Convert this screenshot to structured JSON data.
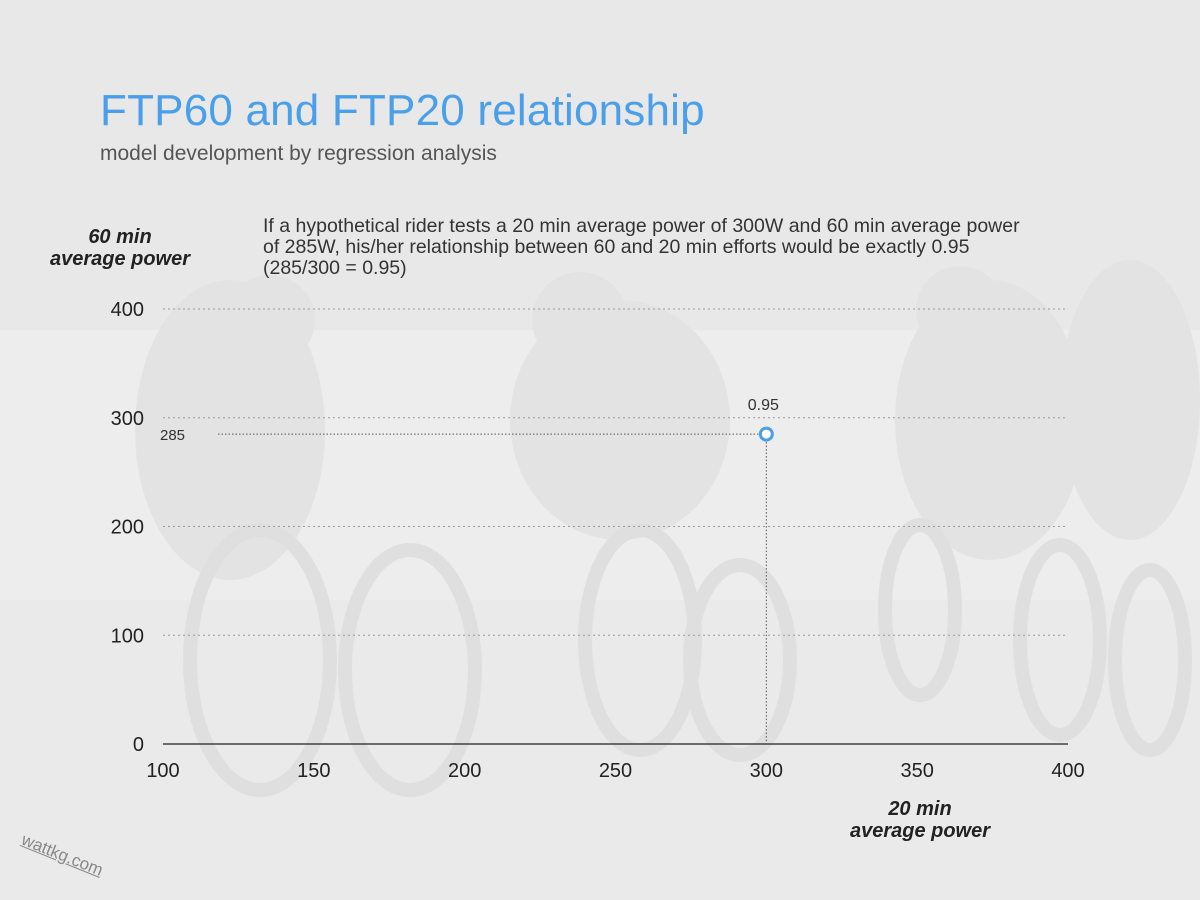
{
  "page": {
    "title": "FTP60 and FTP20 relationship",
    "subtitle": "model development by regression analysis",
    "note": "If a hypothetical rider tests a 20 min average power of 300W and 60 min average power of 285W, his/her relationship between 60 and 20 min efforts would be exactly 0.95 (285/300 = 0.95)",
    "watermark": "wattkg.com"
  },
  "chart_data": {
    "type": "scatter",
    "title": "FTP60 and FTP20 relationship",
    "xlabel": "20 min average power",
    "ylabel": "60 min average power",
    "xlabel_lines": [
      "20 min",
      "average power"
    ],
    "ylabel_lines": [
      "60 min",
      "average power"
    ],
    "xlim": [
      100,
      400
    ],
    "ylim": [
      0,
      400
    ],
    "x_ticks": [
      100,
      150,
      200,
      250,
      300,
      350,
      400
    ],
    "y_ticks": [
      0,
      100,
      200,
      300,
      400
    ],
    "grid": "horizontal dotted",
    "points": [
      {
        "x": 300,
        "y": 285,
        "label": "0.95",
        "y_marker_label": "285"
      }
    ],
    "colors": {
      "point": "#4a9fea",
      "title": "#4a9fea"
    }
  }
}
